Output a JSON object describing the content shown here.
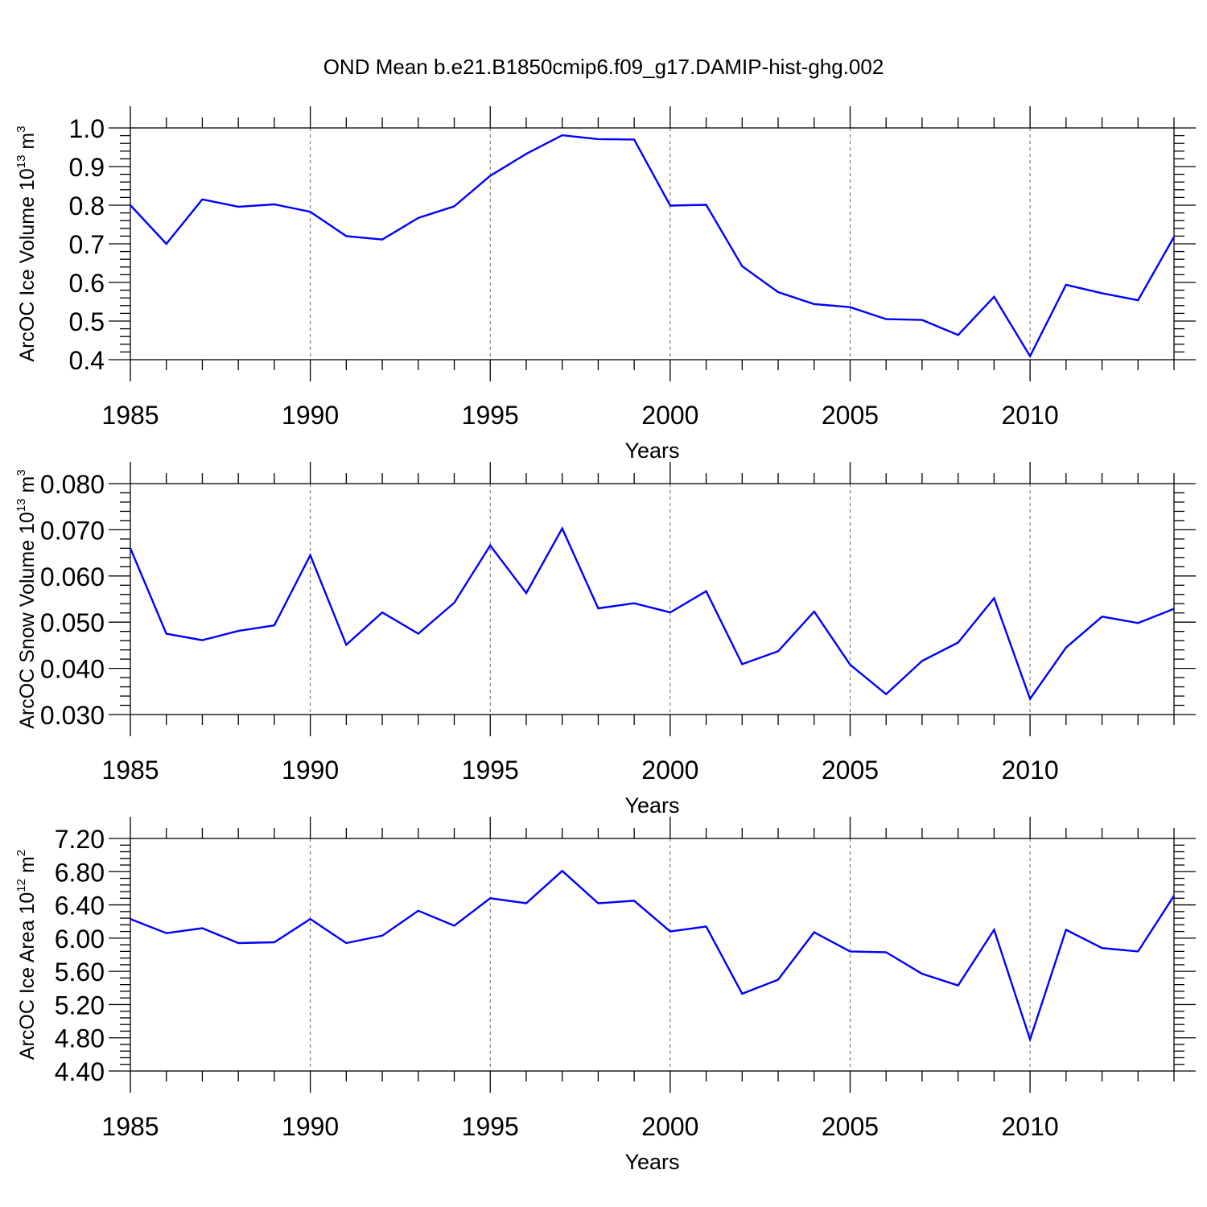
{
  "title": "OND Mean b.e21.B1850cmip6.f09_g17.DAMIP-hist-ghg.002",
  "chart_data": [
    {
      "type": "line",
      "ylabel": "ArcOC Ice Volume 10",
      "ylabel_sup": "13",
      "ylabel_unit": " m",
      "ylabel_unit_sup": "3",
      "xlabel": "Years",
      "xlim": [
        1985,
        2014
      ],
      "ylim": [
        0.4,
        1.0
      ],
      "xticks": [
        "1985",
        "1990",
        "1995",
        "2000",
        "2005",
        "2010"
      ],
      "yticks": [
        "0.4",
        "0.5",
        "0.6",
        "0.7",
        "0.8",
        "0.9",
        "1.0"
      ],
      "color": "#0000ff",
      "x": [
        1985,
        1986,
        1987,
        1988,
        1989,
        1990,
        1991,
        1992,
        1993,
        1994,
        1995,
        1996,
        1997,
        1998,
        1999,
        2000,
        2001,
        2002,
        2003,
        2004,
        2005,
        2006,
        2007,
        2008,
        2009,
        2010,
        2011,
        2012,
        2013,
        2014
      ],
      "values": [
        0.8,
        0.7,
        0.815,
        0.796,
        0.802,
        0.783,
        0.72,
        0.711,
        0.767,
        0.797,
        0.876,
        0.933,
        0.981,
        0.971,
        0.97,
        0.799,
        0.801,
        0.642,
        0.575,
        0.544,
        0.536,
        0.505,
        0.503,
        0.464,
        0.563,
        0.409,
        0.594,
        0.572,
        0.554,
        0.718
      ]
    },
    {
      "type": "line",
      "ylabel": "ArcOC Snow Volume 10",
      "ylabel_sup": "13",
      "ylabel_unit": " m",
      "ylabel_unit_sup": "3",
      "xlabel": "Years",
      "xlim": [
        1985,
        2014
      ],
      "ylim": [
        0.03,
        0.08
      ],
      "xticks": [
        "1985",
        "1990",
        "1995",
        "2000",
        "2005",
        "2010"
      ],
      "yticks": [
        "0.030",
        "0.040",
        "0.050",
        "0.060",
        "0.070",
        "0.080"
      ],
      "color": "#0000ff",
      "x": [
        1985,
        1986,
        1987,
        1988,
        1989,
        1990,
        1991,
        1992,
        1993,
        1994,
        1995,
        1996,
        1997,
        1998,
        1999,
        2000,
        2001,
        2002,
        2003,
        2004,
        2005,
        2006,
        2007,
        2008,
        2009,
        2010,
        2011,
        2012,
        2013,
        2014
      ],
      "values": [
        0.066,
        0.0475,
        0.0461,
        0.0481,
        0.0493,
        0.0645,
        0.0451,
        0.0521,
        0.0475,
        0.0542,
        0.0666,
        0.0563,
        0.0703,
        0.053,
        0.0541,
        0.0521,
        0.0567,
        0.0409,
        0.0437,
        0.0523,
        0.0408,
        0.0344,
        0.0416,
        0.0456,
        0.0552,
        0.0334,
        0.0445,
        0.0512,
        0.0498,
        0.0529
      ]
    },
    {
      "type": "line",
      "ylabel": "ArcOC Ice Area 10",
      "ylabel_sup": "12",
      "ylabel_unit": " m",
      "ylabel_unit_sup": "2",
      "xlabel": "Years",
      "xlim": [
        1985,
        2014
      ],
      "ylim": [
        4.4,
        7.2
      ],
      "xticks": [
        "1985",
        "1990",
        "1995",
        "2000",
        "2005",
        "2010"
      ],
      "yticks": [
        "4.40",
        "4.80",
        "5.20",
        "5.60",
        "6.00",
        "6.40",
        "6.80",
        "7.20"
      ],
      "color": "#0000ff",
      "x": [
        1985,
        1986,
        1987,
        1988,
        1989,
        1990,
        1991,
        1992,
        1993,
        1994,
        1995,
        1996,
        1997,
        1998,
        1999,
        2000,
        2001,
        2002,
        2003,
        2004,
        2005,
        2006,
        2007,
        2008,
        2009,
        2010,
        2011,
        2012,
        2013,
        2014
      ],
      "values": [
        6.23,
        6.06,
        6.12,
        5.94,
        5.95,
        6.23,
        5.94,
        6.03,
        6.33,
        6.15,
        6.48,
        6.42,
        6.81,
        6.42,
        6.45,
        6.08,
        6.14,
        5.33,
        5.5,
        6.07,
        5.84,
        5.83,
        5.57,
        5.43,
        6.1,
        4.78,
        6.1,
        5.88,
        5.84,
        6.51
      ]
    }
  ]
}
